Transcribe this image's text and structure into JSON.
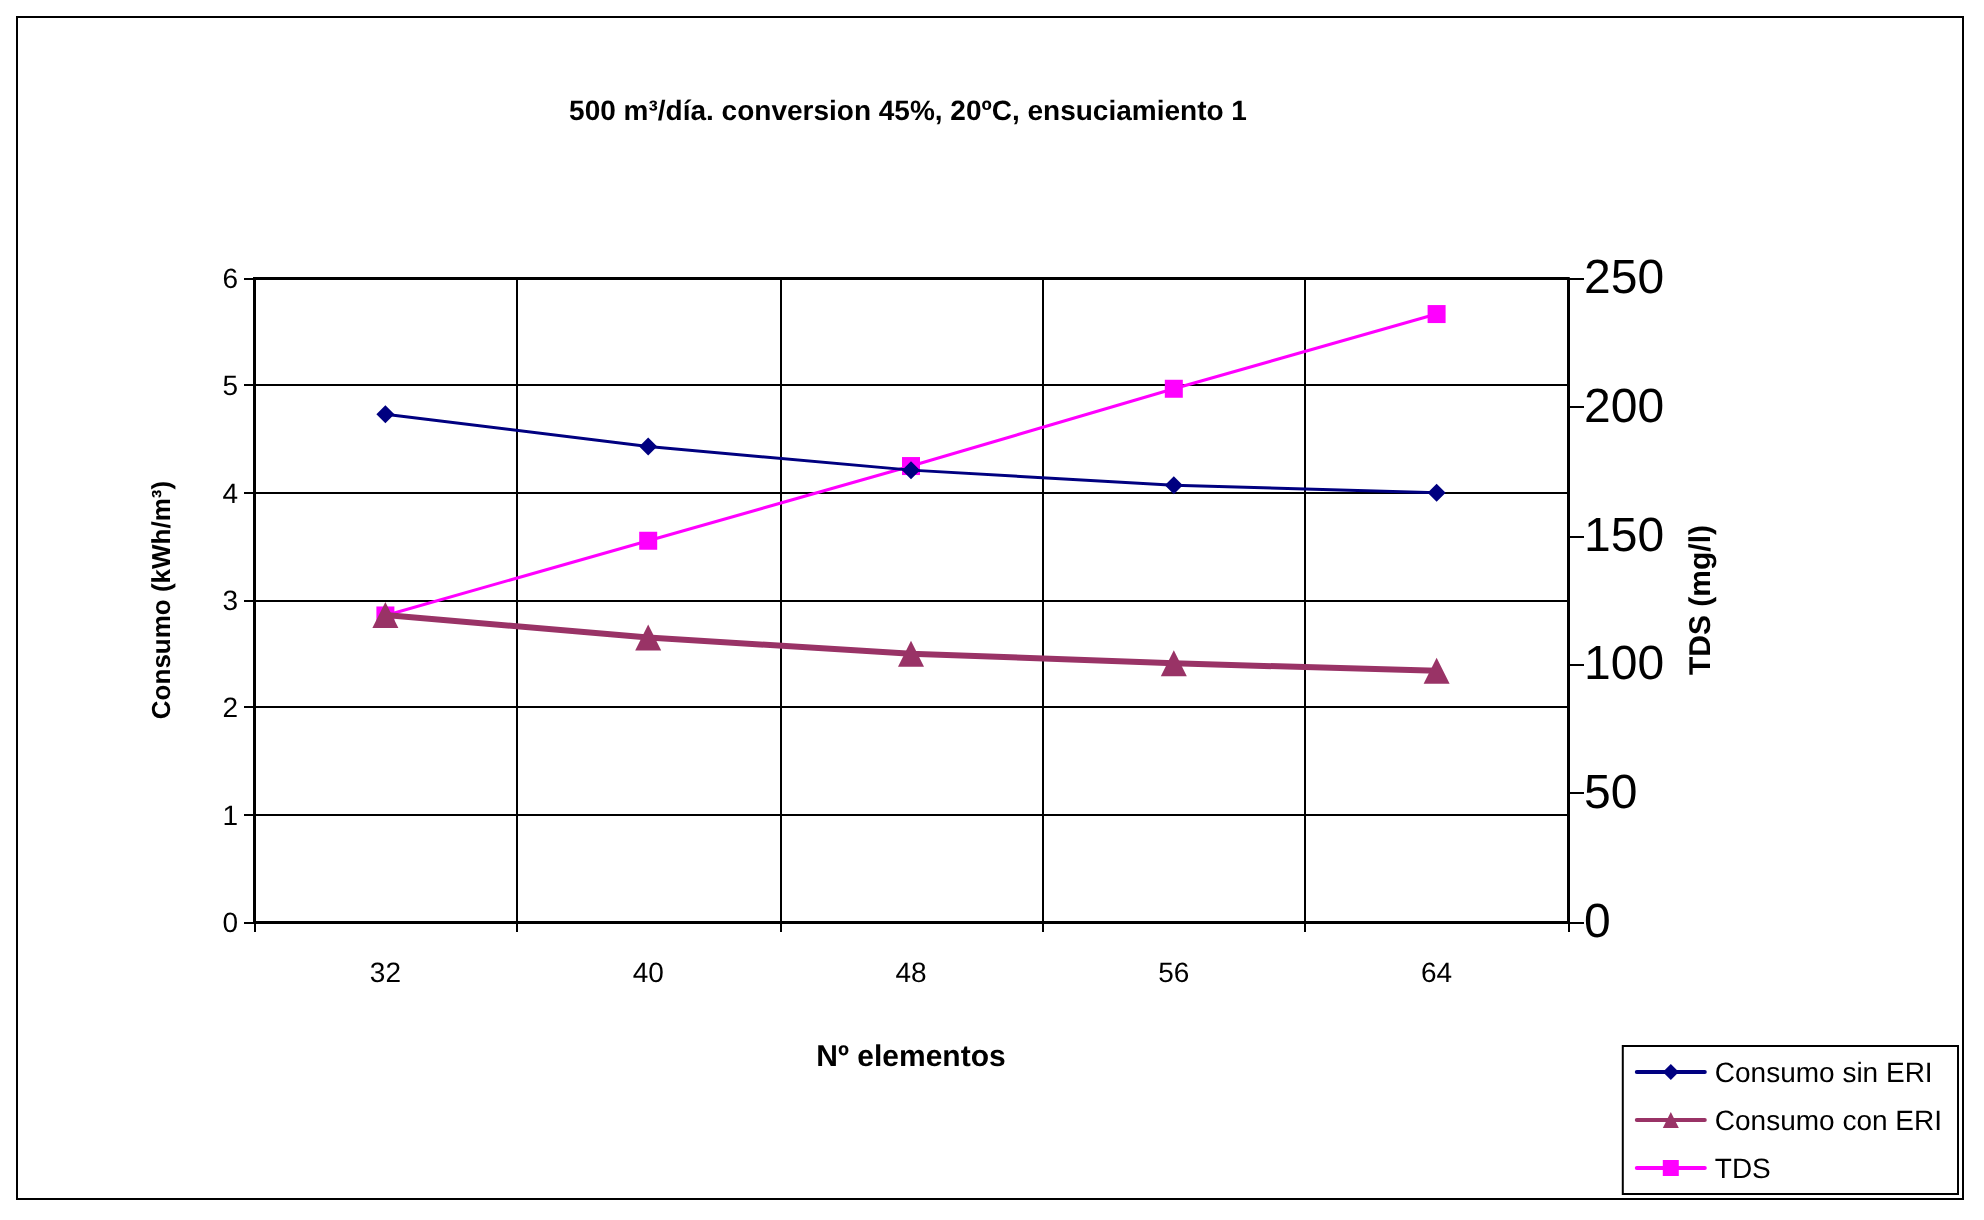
{
  "chart_data": {
    "type": "line",
    "title": "500 m³/día. conversion 45%, 20ºC, ensuciamiento 1",
    "xlabel": "Nº elementos",
    "ylabel": "Consumo (kWh/m³)",
    "y2label": "TDS (mg/l)",
    "categories": [
      "32",
      "40",
      "48",
      "56",
      "64"
    ],
    "series": [
      {
        "name": "Consumo sin ERI",
        "color": "#000080",
        "marker": "diamond",
        "values": [
          4.73,
          4.43,
          4.21,
          4.07,
          4.0
        ]
      },
      {
        "name": "Consumo con ERI",
        "color": "#993366",
        "marker": "triangle",
        "values": [
          2.86,
          2.65,
          2.5,
          2.41,
          2.34
        ]
      },
      {
        "name": "TDS",
        "color": "#ff00ff",
        "marker": "square",
        "axis": "y2",
        "values": [
          119,
          148,
          177,
          207,
          236
        ]
      }
    ],
    "ylim": [
      0,
      6
    ],
    "yticks": [
      0,
      1,
      2,
      3,
      4,
      5,
      6
    ],
    "y2lim": [
      0,
      250
    ],
    "y2ticks": [
      0,
      50,
      100,
      150,
      200,
      250
    ],
    "grid": true,
    "legend": "bottom right"
  }
}
